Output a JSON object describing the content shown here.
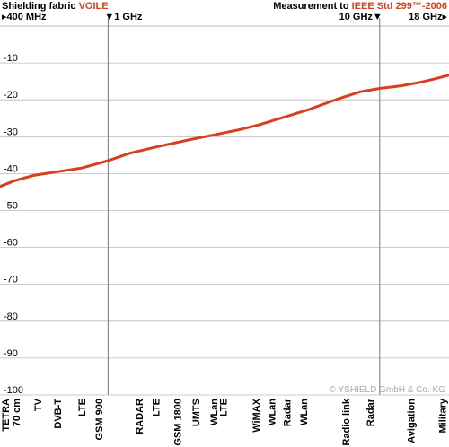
{
  "header": {
    "left_prefix": "Shielding fabric ",
    "left_accent": "VOILE",
    "right_prefix": "Measurement to ",
    "right_accent": "IEEE Std 299™-2006"
  },
  "markers": [
    {
      "label": "▸400 MHz",
      "freq_mhz": 400,
      "align": "start"
    },
    {
      "label": "▼1 GHz",
      "freq_mhz": 1000,
      "align": "start"
    },
    {
      "label": "10 GHz▼",
      "freq_mhz": 10000,
      "align": "end"
    },
    {
      "label": "18 GHz▸",
      "freq_mhz": 18000,
      "align": "end"
    }
  ],
  "copyright": "© YSHIELD GmbH & Co. KG",
  "colors": {
    "line": "#d64020",
    "accent": "#d64020",
    "grid": "#bbbbbb",
    "marker_line": "#777777",
    "copyright": "#aaaaaa"
  },
  "chart_data": {
    "type": "line",
    "xscale": "log",
    "xunit": "MHz",
    "xlim": [
      400,
      18000
    ],
    "ylim": [
      -100,
      0
    ],
    "yticks": [
      -10,
      -20,
      -30,
      -40,
      -50,
      -60,
      -70,
      -80,
      -90,
      -100
    ],
    "grid": true,
    "series": [
      {
        "x": [
          400,
          450,
          530,
          650,
          800,
          1000,
          1200,
          1500,
          2000,
          2500,
          3000,
          3600,
          4500,
          5500,
          7000,
          8500,
          10000,
          12000,
          14000,
          16000,
          18000
        ],
        "y": [
          -43.5,
          -42,
          -40.5,
          -39.5,
          -38.5,
          -36.5,
          -34.5,
          -32.8,
          -30.8,
          -29.4,
          -28.2,
          -26.8,
          -24.6,
          -22.6,
          -19.8,
          -17.8,
          -16.9,
          -16.2,
          -15.3,
          -14.3,
          -13.3
        ]
      }
    ],
    "bands": [
      {
        "label": "TETRA\n70 cm",
        "freq_mhz": 420
      },
      {
        "label": "TV",
        "freq_mhz": 550
      },
      {
        "label": "DVB-T",
        "freq_mhz": 650
      },
      {
        "label": "LTE",
        "freq_mhz": 800
      },
      {
        "label": "GSM 900",
        "freq_mhz": 925
      },
      {
        "label": "RADAR",
        "freq_mhz": 1300
      },
      {
        "label": "LTE",
        "freq_mhz": 1500
      },
      {
        "label": "GSM 1800",
        "freq_mhz": 1800
      },
      {
        "label": "UMTS",
        "freq_mhz": 2100
      },
      {
        "label": "WLan",
        "freq_mhz": 2450
      },
      {
        "label": "LTE",
        "freq_mhz": 2650
      },
      {
        "label": "WiMAX",
        "freq_mhz": 3500
      },
      {
        "label": "WLan",
        "freq_mhz": 4000
      },
      {
        "label": "Radar",
        "freq_mhz": 4550
      },
      {
        "label": "WLan",
        "freq_mhz": 5250
      },
      {
        "label": "Radio link",
        "freq_mhz": 7500
      },
      {
        "label": "Radar",
        "freq_mhz": 9200
      },
      {
        "label": "Avigation",
        "freq_mhz": 13000
      },
      {
        "label": "Military",
        "freq_mhz": 17000
      }
    ]
  }
}
